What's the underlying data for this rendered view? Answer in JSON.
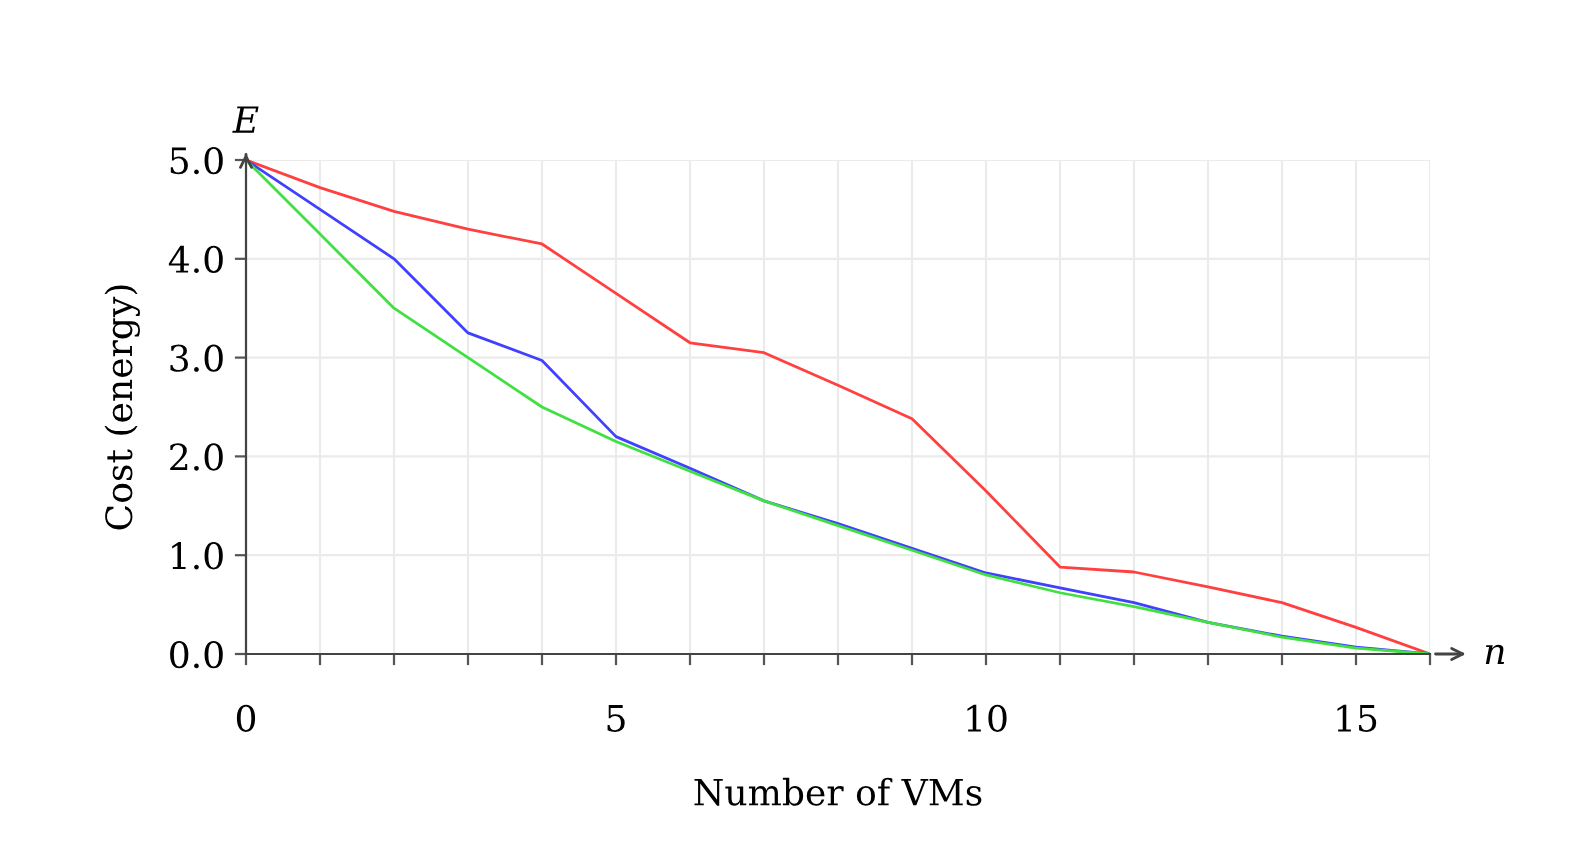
{
  "chart_data": {
    "type": "line",
    "xlabel": "Number of VMs",
    "ylabel": "Cost (energy)",
    "annotations": [
      "E",
      "n"
    ],
    "x": [
      0,
      1,
      2,
      3,
      4,
      5,
      6,
      7,
      8,
      9,
      10,
      11,
      12,
      13,
      14,
      15,
      16
    ],
    "series": [
      {
        "color": "#ff4040",
        "values": [
          5.0,
          4.72,
          4.48,
          4.3,
          4.15,
          3.65,
          3.15,
          3.05,
          2.72,
          2.38,
          1.65,
          0.88,
          0.83,
          0.68,
          0.52,
          0.27,
          0.0
        ]
      },
      {
        "color": "#4040ff",
        "values": [
          5.0,
          4.5,
          4.0,
          3.25,
          2.97,
          2.2,
          1.88,
          1.55,
          1.32,
          1.07,
          0.82,
          0.67,
          0.52,
          0.32,
          0.18,
          0.07,
          0.0
        ]
      },
      {
        "color": "#40e040",
        "values": [
          5.0,
          4.25,
          3.5,
          3.0,
          2.5,
          2.15,
          1.85,
          1.55,
          1.3,
          1.05,
          0.8,
          0.62,
          0.48,
          0.32,
          0.17,
          0.06,
          0.0
        ]
      }
    ],
    "xlim": [
      0,
      16
    ],
    "ylim": [
      0,
      5
    ],
    "xticks": [
      0,
      {
        "value": 1,
        "label": null
      },
      {
        "value": 2,
        "label": null
      },
      {
        "value": 3,
        "label": null
      },
      {
        "value": 4,
        "label": null
      },
      5,
      {
        "value": 6,
        "label": null
      },
      {
        "value": 7,
        "label": null
      },
      {
        "value": 8,
        "label": null
      },
      {
        "value": 9,
        "label": null
      },
      10,
      {
        "value": 11,
        "label": null
      },
      {
        "value": 12,
        "label": null
      },
      {
        "value": 13,
        "label": null
      },
      {
        "value": 14,
        "label": null
      },
      15,
      {
        "value": 16,
        "label": null
      }
    ],
    "yticks": [
      {
        "value": 0,
        "label": "0.0"
      },
      {
        "value": 1,
        "label": "1.0"
      },
      {
        "value": 2,
        "label": "2.0"
      },
      {
        "value": 3,
        "label": "3.0"
      },
      {
        "value": 4,
        "label": "4.0"
      },
      {
        "value": 5,
        "label": "5.0"
      }
    ],
    "grid": true,
    "marker": "none",
    "line_style": "solid",
    "legend": false
  }
}
